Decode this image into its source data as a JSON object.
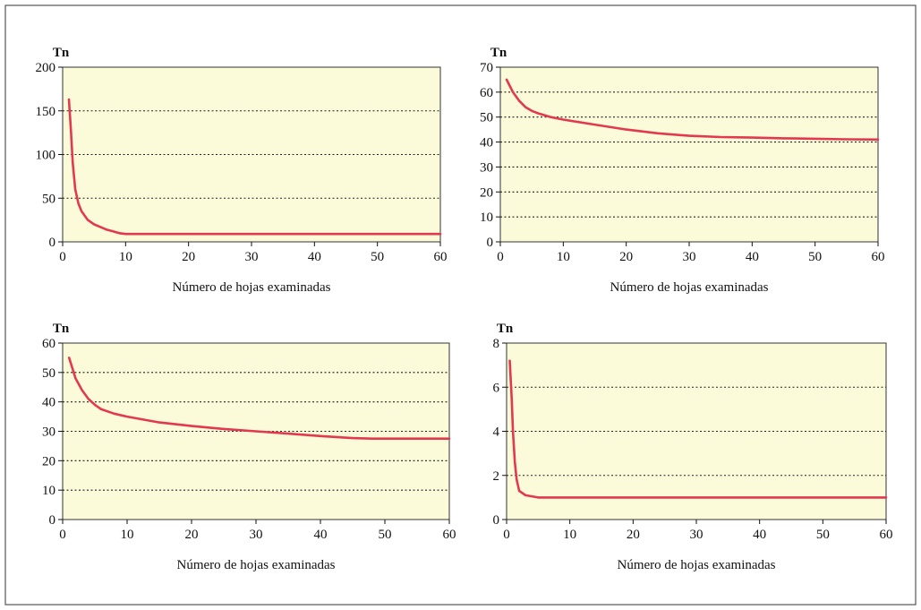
{
  "chart_data": [
    {
      "type": "line",
      "ylabel": "Tn",
      "xlabel": "Número de hojas examinadas",
      "xlim": [
        0,
        60
      ],
      "ylim": [
        0,
        200
      ],
      "xticks": [
        0,
        10,
        20,
        30,
        40,
        50,
        60
      ],
      "yticks": [
        0,
        50,
        100,
        150,
        200
      ],
      "grid": "horizontal-dotted",
      "series": [
        {
          "x": [
            1,
            1.3,
            1.6,
            2,
            2.5,
            3,
            4,
            5,
            6,
            7,
            8,
            9,
            10,
            15,
            20,
            30,
            40,
            50,
            60
          ],
          "y": [
            163,
            130,
            90,
            60,
            44,
            35,
            25,
            20,
            17,
            14,
            12,
            10,
            9,
            9,
            9,
            9,
            9,
            9,
            9
          ]
        }
      ]
    },
    {
      "type": "line",
      "ylabel": "Tn",
      "xlabel": "Número de hojas examinadas",
      "xlim": [
        0,
        60
      ],
      "ylim": [
        0,
        70
      ],
      "xticks": [
        0,
        10,
        20,
        30,
        40,
        50,
        60
      ],
      "yticks": [
        0,
        10,
        20,
        30,
        40,
        50,
        60,
        70
      ],
      "grid": "horizontal-dotted",
      "series": [
        {
          "x": [
            1,
            2,
            3,
            4,
            5,
            6,
            8,
            10,
            15,
            20,
            25,
            30,
            35,
            40,
            45,
            50,
            55,
            60
          ],
          "y": [
            65,
            60,
            56.5,
            54,
            52.5,
            51.5,
            50,
            49,
            47,
            45,
            43.5,
            42.5,
            42,
            41.8,
            41.5,
            41.3,
            41.1,
            41
          ]
        }
      ]
    },
    {
      "type": "line",
      "ylabel": "Tn",
      "xlabel": "Número de hojas examinadas",
      "xlim": [
        0,
        60
      ],
      "ylim": [
        0,
        60
      ],
      "xticks": [
        0,
        10,
        20,
        30,
        40,
        50,
        60
      ],
      "yticks": [
        0,
        10,
        20,
        30,
        40,
        50,
        60
      ],
      "grid": "horizontal-dotted",
      "series": [
        {
          "x": [
            1,
            2,
            3,
            4,
            5,
            6,
            8,
            10,
            15,
            20,
            25,
            30,
            35,
            40,
            45,
            48,
            55,
            60
          ],
          "y": [
            55,
            48,
            44,
            41,
            39,
            37.5,
            36,
            35,
            33,
            31.8,
            30.8,
            30,
            29.2,
            28.4,
            27.7,
            27.5,
            27.5,
            27.5
          ]
        }
      ]
    },
    {
      "type": "line",
      "ylabel": "Tn",
      "xlabel": "Número de hojas examinadas",
      "xlim": [
        0,
        60
      ],
      "ylim": [
        0,
        8
      ],
      "xticks": [
        0,
        10,
        20,
        30,
        40,
        50,
        60
      ],
      "yticks": [
        0,
        2,
        4,
        6,
        8
      ],
      "grid": "horizontal-dotted",
      "series": [
        {
          "x": [
            0.5,
            0.8,
            1,
            1.3,
            1.6,
            2,
            3,
            4,
            5,
            10,
            20,
            30,
            40,
            50,
            60
          ],
          "y": [
            7.2,
            5.5,
            4,
            2.6,
            1.8,
            1.3,
            1.1,
            1.05,
            1,
            1,
            1,
            1,
            1,
            1,
            1
          ]
        }
      ]
    }
  ]
}
